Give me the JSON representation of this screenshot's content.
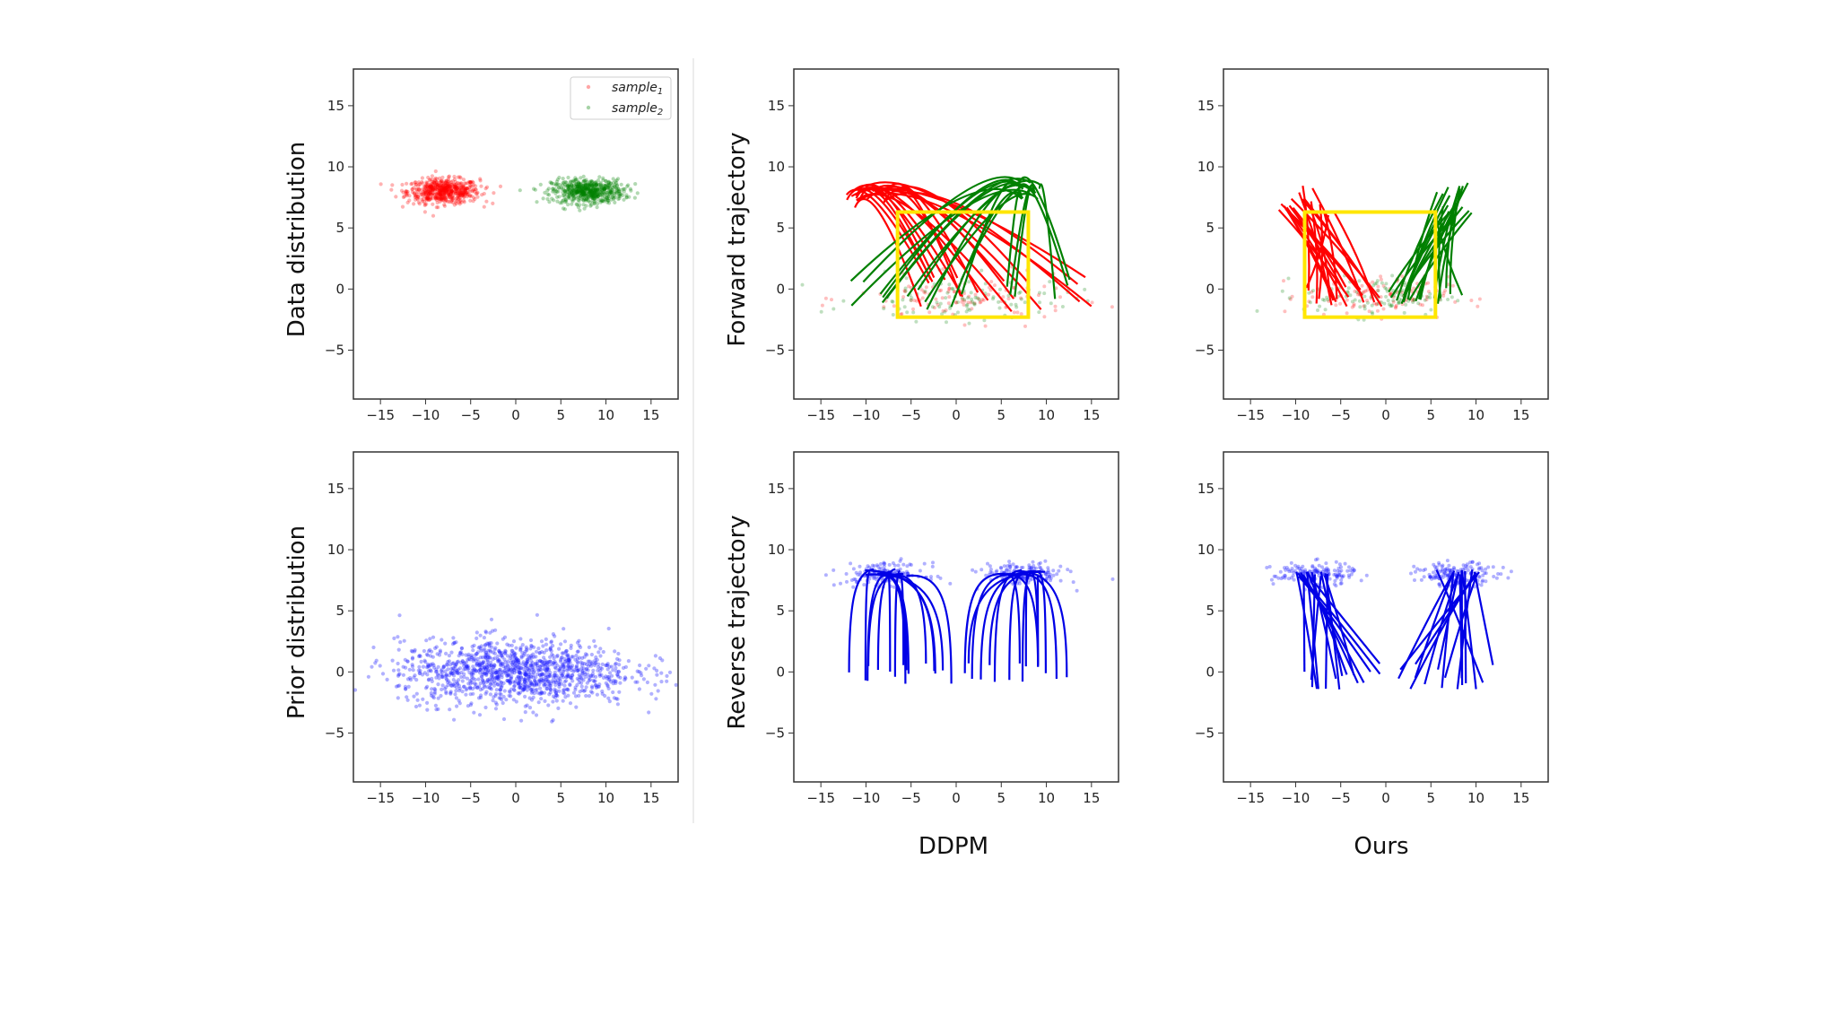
{
  "column_labels": [
    "DDPM",
    "Ours"
  ],
  "colors": {
    "sample1": "#ff0000",
    "sample2": "#008000",
    "prior": "#1f1fff",
    "reverse": "#0000e6",
    "highlight": "#ffe600"
  },
  "legend": {
    "entries": [
      {
        "base": "sample",
        "sub": "1",
        "color": "#ff0000"
      },
      {
        "base": "sample",
        "sub": "2",
        "color": "#008000"
      }
    ]
  },
  "chart_data": [
    {
      "id": "data-distribution",
      "type": "scatter",
      "ylabel": "Data distribution",
      "xlim": [
        -18,
        18
      ],
      "ylim": [
        -9,
        18
      ],
      "xticks": [
        -15,
        -10,
        -5,
        0,
        5,
        10,
        15
      ],
      "yticks": [
        -5,
        0,
        5,
        10,
        15
      ],
      "series": [
        {
          "name": "sample1",
          "center": [
            -8,
            8
          ],
          "spread": [
            2.0,
            0.5
          ],
          "count": 600
        },
        {
          "name": "sample2",
          "center": [
            8,
            8
          ],
          "spread": [
            2.0,
            0.5
          ],
          "count": 600
        }
      ]
    },
    {
      "id": "ddpm-forward",
      "type": "line",
      "ylabel": "Forward trajectory",
      "xlim": [
        -18,
        18
      ],
      "ylim": [
        -9,
        18
      ],
      "xticks": [
        -15,
        -10,
        -5,
        0,
        5,
        10,
        15
      ],
      "yticks": [
        -5,
        0,
        5,
        10,
        15
      ],
      "series": [
        {
          "name": "sample1",
          "start_x": [
            -12.5,
            -7
          ],
          "start_y": [
            6.5,
            8.5
          ],
          "end_x": [
            -6,
            16
          ],
          "end_y": [
            -2,
            1
          ]
        },
        {
          "name": "sample2",
          "start_x": [
            6,
            9.5
          ],
          "start_y": [
            7,
            8.8
          ],
          "end_x": [
            -14,
            13
          ],
          "end_y": [
            -2,
            1
          ]
        }
      ],
      "endpoint_cloud": {
        "center": [
          1,
          -0.8
        ],
        "spread": [
          6,
          0.9
        ],
        "count": 220
      },
      "highlight_box": {
        "x": [
          -6.5,
          8
        ],
        "y": [
          -2.3,
          6.3
        ]
      }
    },
    {
      "id": "ours-forward",
      "type": "line",
      "ylabel": "",
      "xlim": [
        -18,
        18
      ],
      "ylim": [
        -9,
        18
      ],
      "xticks": [
        -15,
        -10,
        -5,
        0,
        5,
        10,
        15
      ],
      "yticks": [
        -5,
        0,
        5,
        10,
        15
      ],
      "series": [
        {
          "name": "sample1",
          "start_x": [
            -12,
            -5.5
          ],
          "start_y": [
            6,
            8.5
          ],
          "end_x": [
            -9,
            0
          ],
          "end_y": [
            -1.5,
            0.5
          ]
        },
        {
          "name": "sample2",
          "start_x": [
            5,
            10
          ],
          "start_y": [
            6,
            8.8
          ],
          "end_x": [
            0,
            8.5
          ],
          "end_y": [
            -1.5,
            0.5
          ]
        }
      ],
      "endpoint_cloud": {
        "center": [
          -1,
          -0.6
        ],
        "spread": [
          4,
          0.8
        ],
        "count": 220
      },
      "highlight_box": {
        "x": [
          -9,
          5.5
        ],
        "y": [
          -2.3,
          6.3
        ]
      }
    },
    {
      "id": "prior-distribution",
      "type": "scatter",
      "ylabel": "Prior distribution",
      "xlim": [
        -18,
        18
      ],
      "ylim": [
        -9,
        18
      ],
      "xticks": [
        -15,
        -10,
        -5,
        0,
        5,
        10,
        15
      ],
      "yticks": [
        -5,
        0,
        5,
        10,
        15
      ],
      "series": [
        {
          "name": "prior",
          "center": [
            0,
            0
          ],
          "spread": [
            6.5,
            1.3
          ],
          "count": 1300
        }
      ]
    },
    {
      "id": "ddpm-reverse",
      "type": "line",
      "ylabel": "Reverse trajectory",
      "xlim": [
        -18,
        18
      ],
      "ylim": [
        -9,
        18
      ],
      "xticks": [
        -15,
        -10,
        -5,
        0,
        5,
        10,
        15
      ],
      "yticks": [
        -5,
        0,
        5,
        10,
        15
      ],
      "series": [
        {
          "name": "left-mode",
          "cluster": [
            -8,
            8
          ],
          "start_x": [
            -12,
            -0.2
          ],
          "start_y": [
            -1,
            0.8
          ]
        },
        {
          "name": "right-mode",
          "cluster": [
            7.5,
            8
          ],
          "start_x": [
            0.2,
            13
          ],
          "start_y": [
            -1,
            0.8
          ]
        }
      ],
      "endpoint_cloud": {
        "modes": [
          [
            -8,
            8
          ],
          [
            7.5,
            8
          ]
        ],
        "spread": [
          2.3,
          0.45
        ],
        "count": 300
      }
    },
    {
      "id": "ours-reverse",
      "type": "line",
      "ylabel": "",
      "xlim": [
        -18,
        18
      ],
      "ylim": [
        -9,
        18
      ],
      "xticks": [
        -15,
        -10,
        -5,
        0,
        5,
        10,
        15
      ],
      "yticks": [
        -5,
        0,
        5,
        10,
        15
      ],
      "series": [
        {
          "name": "left-mode",
          "cluster": [
            -8,
            8
          ],
          "start_x": [
            -10,
            0
          ],
          "start_y": [
            -1.5,
            0.8
          ]
        },
        {
          "name": "right-mode",
          "cluster": [
            8,
            8
          ],
          "start_x": [
            0,
            12.5
          ],
          "start_y": [
            -1.5,
            0.8
          ]
        }
      ],
      "endpoint_cloud": {
        "modes": [
          [
            -8,
            8
          ],
          [
            8,
            8
          ]
        ],
        "spread": [
          2.3,
          0.45
        ],
        "count": 300
      }
    }
  ]
}
